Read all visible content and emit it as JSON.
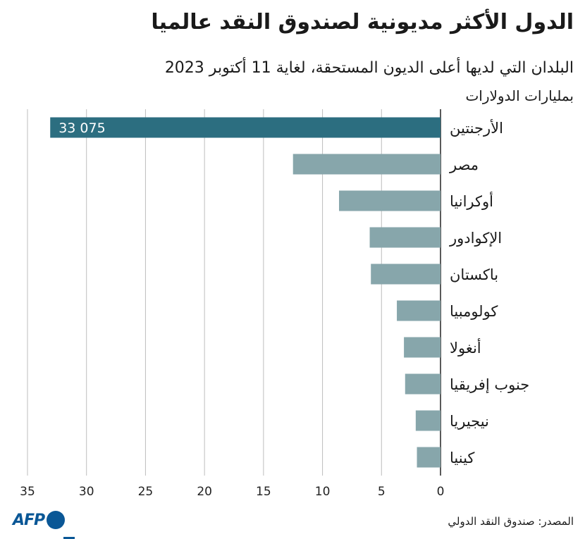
{
  "title": "الدول الأكثر مديونية لصندوق النقد عالميا",
  "subtitle": "البلدان التي لديها أعلى الديون المستحقة، لغاية 11 أكتوبر 2023",
  "unit_label": "بمليارات الدولارات",
  "source": "المصدر: صندوق النقد الدولي",
  "logo_text": "AFP",
  "colors": {
    "highlight_bar": "#2c6e80",
    "bar": "#87a6ab",
    "grid": "#bdbdbd",
    "axis": "#222222",
    "logo": "#0a5796"
  },
  "chart_data": {
    "type": "bar",
    "orientation": "horizontal",
    "categories": [
      "الأرجنتين",
      "مصر",
      "أوكرانيا",
      "الإكوادور",
      "باكستان",
      "كولومبيا",
      "أنغولا",
      "جنوب إفريقيا",
      "نيجيريا",
      "كينيا"
    ],
    "values": [
      33.075,
      12.5,
      8.6,
      6.0,
      5.9,
      3.7,
      3.1,
      3.0,
      2.1,
      2.0
    ],
    "highlight_index": 0,
    "data_labels": [
      "33 075",
      "",
      "",
      "",
      "",
      "",
      "",
      "",
      "",
      ""
    ],
    "xlim": [
      0,
      35
    ],
    "x_ticks": [
      35,
      30,
      25,
      20,
      15,
      10,
      5,
      0
    ],
    "x_reversed": true,
    "grid": true
  }
}
